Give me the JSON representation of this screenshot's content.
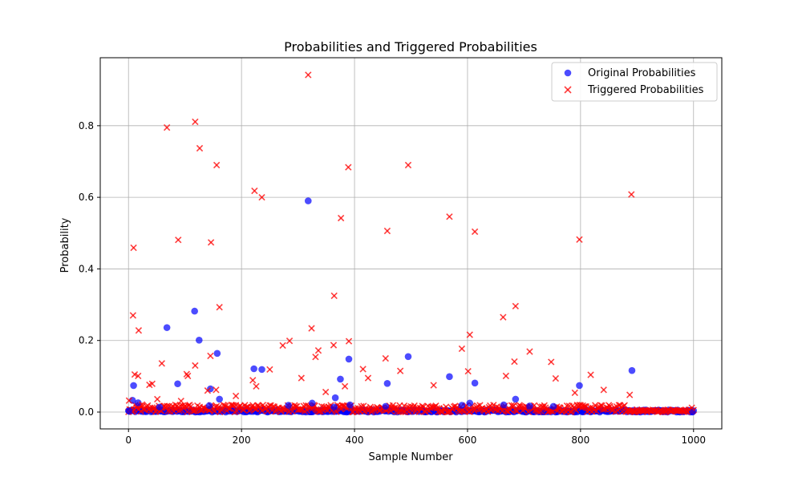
{
  "chart_data": {
    "type": "scatter",
    "title": "Probabilities and Triggered Probabilities",
    "xlabel": "Sample Number",
    "ylabel": "Probability",
    "xlim": [
      -50,
      1050
    ],
    "ylim": [
      -0.047,
      0.99
    ],
    "x_ticks": [
      0,
      200,
      400,
      600,
      800,
      1000
    ],
    "y_ticks": [
      0.0,
      0.2,
      0.4,
      0.6,
      0.8
    ],
    "x_tick_labels": [
      "0",
      "200",
      "400",
      "600",
      "800",
      "1000"
    ],
    "y_tick_labels": [
      "0.0",
      "0.2",
      "0.4",
      "0.6",
      "0.8"
    ],
    "grid": true,
    "legend_position": "top-right",
    "baseline_note": "Most of the 1000 samples lie between 0.0 and 0.02 in both series.",
    "series": [
      {
        "name": "Original Probabilities",
        "marker": "circle",
        "color": "#0000ff",
        "points": [
          [
            1,
            0.003
          ],
          [
            7,
            0.033
          ],
          [
            9,
            0.074
          ],
          [
            17,
            0.026
          ],
          [
            55,
            0.014
          ],
          [
            68,
            0.236
          ],
          [
            87,
            0.079
          ],
          [
            117,
            0.282
          ],
          [
            125,
            0.201
          ],
          [
            143,
            0.018
          ],
          [
            145,
            0.065
          ],
          [
            157,
            0.164
          ],
          [
            161,
            0.036
          ],
          [
            222,
            0.121
          ],
          [
            236,
            0.119
          ],
          [
            283,
            0.019
          ],
          [
            318,
            0.59
          ],
          [
            325,
            0.025
          ],
          [
            364,
            0.014
          ],
          [
            366,
            0.04
          ],
          [
            375,
            0.092
          ],
          [
            390,
            0.148
          ],
          [
            392,
            0.02
          ],
          [
            455,
            0.016
          ],
          [
            458,
            0.08
          ],
          [
            495,
            0.155
          ],
          [
            568,
            0.099
          ],
          [
            590,
            0.019
          ],
          [
            604,
            0.025
          ],
          [
            613,
            0.081
          ],
          [
            664,
            0.02
          ],
          [
            685,
            0.036
          ],
          [
            710,
            0.017
          ],
          [
            752,
            0.016
          ],
          [
            798,
            0.074
          ],
          [
            891,
            0.116
          ],
          [
            998,
            0.001
          ]
        ]
      },
      {
        "name": "Triggered Probabilities",
        "marker": "x",
        "color": "#ff0000",
        "points": [
          [
            1,
            0.032
          ],
          [
            8,
            0.27
          ],
          [
            9,
            0.459
          ],
          [
            11,
            0.105
          ],
          [
            17,
            0.101
          ],
          [
            18,
            0.228
          ],
          [
            24,
            0.021
          ],
          [
            37,
            0.076
          ],
          [
            42,
            0.079
          ],
          [
            51,
            0.036
          ],
          [
            59,
            0.136
          ],
          [
            68,
            0.795
          ],
          [
            83,
            0.02
          ],
          [
            88,
            0.481
          ],
          [
            93,
            0.031
          ],
          [
            103,
            0.106
          ],
          [
            105,
            0.101
          ],
          [
            118,
            0.811
          ],
          [
            118,
            0.13
          ],
          [
            126,
            0.737
          ],
          [
            140,
            0.06
          ],
          [
            145,
            0.157
          ],
          [
            146,
            0.474
          ],
          [
            155,
            0.062
          ],
          [
            156,
            0.69
          ],
          [
            161,
            0.293
          ],
          [
            190,
            0.045
          ],
          [
            220,
            0.089
          ],
          [
            223,
            0.618
          ],
          [
            226,
            0.072
          ],
          [
            236,
            0.6
          ],
          [
            250,
            0.119
          ],
          [
            273,
            0.186
          ],
          [
            285,
            0.199
          ],
          [
            306,
            0.095
          ],
          [
            318,
            0.942
          ],
          [
            324,
            0.234
          ],
          [
            331,
            0.154
          ],
          [
            336,
            0.172
          ],
          [
            349,
            0.056
          ],
          [
            363,
            0.187
          ],
          [
            364,
            0.325
          ],
          [
            376,
            0.542
          ],
          [
            383,
            0.072
          ],
          [
            389,
            0.684
          ],
          [
            390,
            0.198
          ],
          [
            415,
            0.12
          ],
          [
            424,
            0.095
          ],
          [
            455,
            0.15
          ],
          [
            458,
            0.506
          ],
          [
            481,
            0.115
          ],
          [
            495,
            0.69
          ],
          [
            540,
            0.075
          ],
          [
            568,
            0.546
          ],
          [
            590,
            0.177
          ],
          [
            601,
            0.114
          ],
          [
            604,
            0.216
          ],
          [
            613,
            0.504
          ],
          [
            663,
            0.265
          ],
          [
            668,
            0.101
          ],
          [
            685,
            0.296
          ],
          [
            683,
            0.141
          ],
          [
            710,
            0.169
          ],
          [
            748,
            0.14
          ],
          [
            756,
            0.094
          ],
          [
            790,
            0.054
          ],
          [
            798,
            0.482
          ],
          [
            818,
            0.104
          ],
          [
            841,
            0.062
          ],
          [
            887,
            0.048
          ],
          [
            890,
            0.608
          ],
          [
            997,
            0.012
          ]
        ]
      }
    ]
  }
}
